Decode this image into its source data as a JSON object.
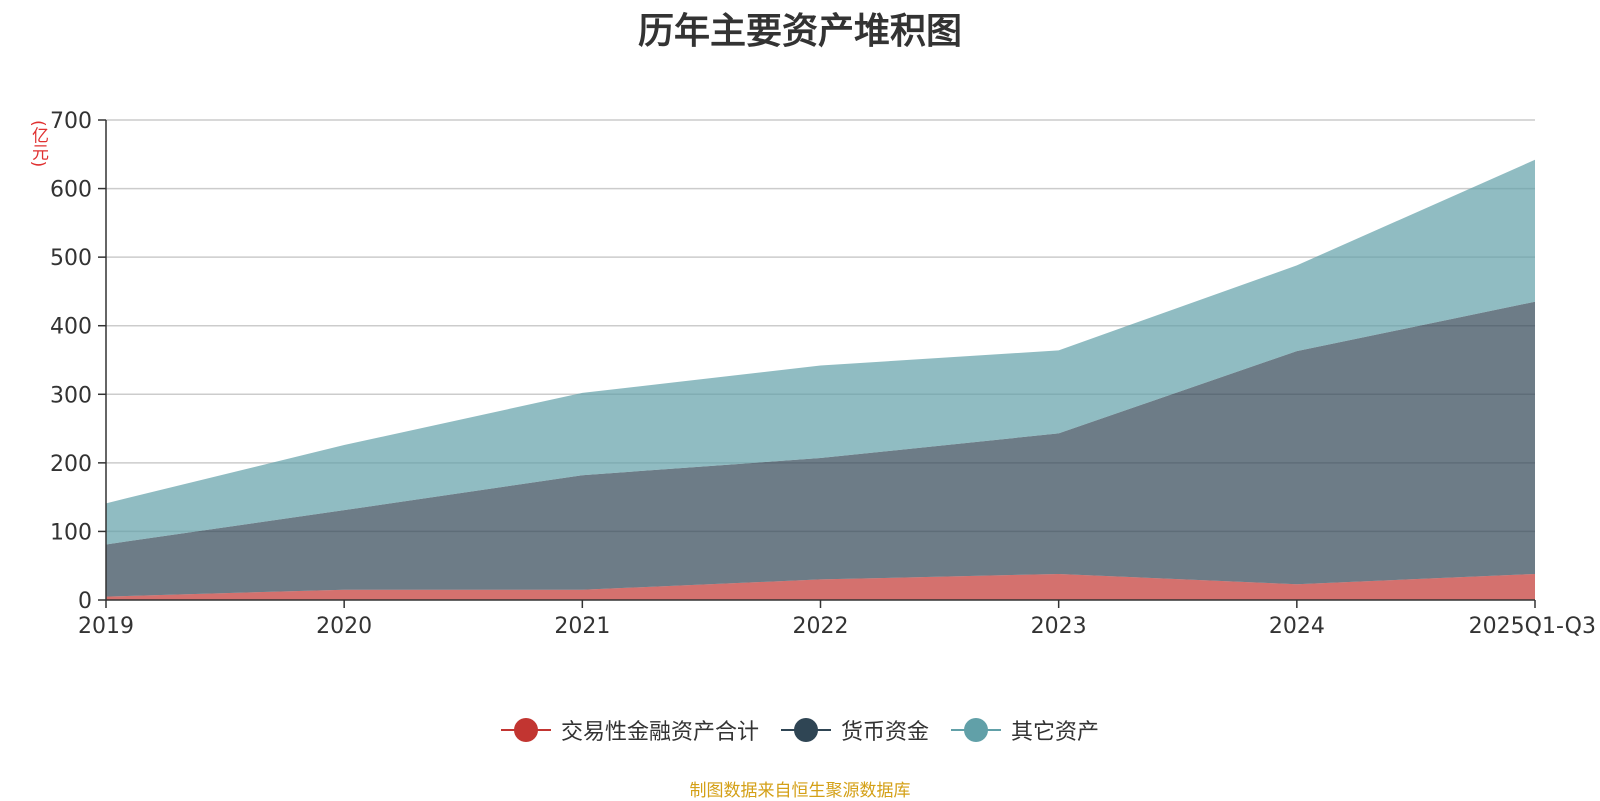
{
  "chart_data": {
    "type": "area",
    "stacked": true,
    "title": "历年主要资产堆积图",
    "unit_label": "(亿元)",
    "categories": [
      "2019",
      "2020",
      "2021",
      "2022",
      "2023",
      "2024",
      "2025Q1-Q3"
    ],
    "series": [
      {
        "name": "交易性金融资产合计",
        "color": "#c23531",
        "values": [
          5,
          15,
          15,
          30,
          38,
          23,
          38
        ]
      },
      {
        "name": "货币资金",
        "color": "#2f4554",
        "values": [
          76,
          116,
          167,
          177,
          205,
          340,
          397
        ]
      },
      {
        "name": "其它资产",
        "color": "#61a0a8",
        "values": [
          60,
          95,
          120,
          135,
          121,
          125,
          207
        ]
      }
    ],
    "ylim": [
      0,
      700
    ],
    "yticks": [
      0,
      100,
      200,
      300,
      400,
      500,
      600,
      700
    ],
    "grid": true,
    "legend_position": "bottom"
  },
  "source_note": "制图数据来自恒生聚源数据库"
}
